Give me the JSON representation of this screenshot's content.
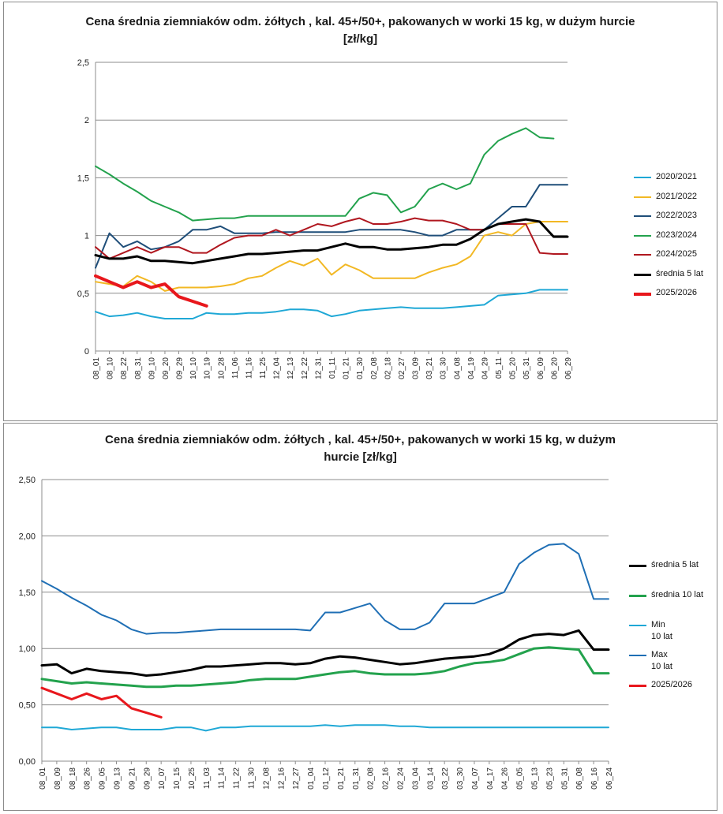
{
  "chart_data": [
    {
      "type": "line",
      "title": "Cena średnia ziemniaków odm. żółtych , kal. 45+/50+, pakowanych w worki 15 kg, w dużym hurcie [zł/kg]",
      "ylim": [
        0,
        2.5
      ],
      "yticks": [
        "0",
        "0,5",
        "1",
        "1,5",
        "2",
        "2,5"
      ],
      "ytick_values": [
        0,
        0.5,
        1,
        1.5,
        2,
        2.5
      ],
      "grid": true,
      "legend_position": "right",
      "categories": [
        "08_01",
        "08_10",
        "08_22",
        "08_31",
        "09_10",
        "09_20",
        "09_29",
        "10_10",
        "10_19",
        "10_28",
        "11_06",
        "11_16",
        "11_25",
        "12_04",
        "12_13",
        "12_22",
        "12_31",
        "01_11",
        "01_21",
        "01_30",
        "02_08",
        "02_18",
        "02_27",
        "03_09",
        "03_21",
        "03_30",
        "04_08",
        "04_19",
        "04_29",
        "05_11",
        "05_20",
        "05_31",
        "06_09",
        "06_20",
        "06_29"
      ],
      "series": [
        {
          "name": "2020/2021",
          "color": "#1fa8d6",
          "width": 2,
          "values": [
            0.34,
            0.3,
            0.31,
            0.33,
            0.3,
            0.28,
            0.28,
            0.28,
            0.33,
            0.32,
            0.32,
            0.33,
            0.33,
            0.34,
            0.36,
            0.36,
            0.35,
            0.3,
            0.32,
            0.35,
            0.36,
            0.37,
            0.38,
            0.37,
            0.37,
            0.37,
            0.38,
            0.39,
            0.4,
            0.48,
            0.49,
            0.5,
            0.53,
            0.53,
            0.53
          ]
        },
        {
          "name": "2021/2022",
          "color": "#f2b824",
          "width": 2,
          "values": [
            0.6,
            0.58,
            0.56,
            0.65,
            0.6,
            0.52,
            0.55,
            0.55,
            0.55,
            0.56,
            0.58,
            0.63,
            0.65,
            0.72,
            0.78,
            0.74,
            0.8,
            0.66,
            0.75,
            0.7,
            0.63,
            0.63,
            0.63,
            0.63,
            0.68,
            0.72,
            0.75,
            0.82,
            1.0,
            1.03,
            1.0,
            1.1,
            1.12,
            1.12,
            1.12
          ]
        },
        {
          "name": "2022/2023",
          "color": "#1f4e79",
          "width": 2,
          "values": [
            0.72,
            1.02,
            0.9,
            0.95,
            0.88,
            0.9,
            0.95,
            1.05,
            1.05,
            1.08,
            1.02,
            1.02,
            1.02,
            1.03,
            1.03,
            1.03,
            1.03,
            1.03,
            1.03,
            1.05,
            1.05,
            1.05,
            1.05,
            1.03,
            1.0,
            1.0,
            1.05,
            1.05,
            1.05,
            1.15,
            1.25,
            1.25,
            1.44,
            1.44,
            1.44
          ]
        },
        {
          "name": "2023/2024",
          "color": "#23a24d",
          "width": 2,
          "values": [
            1.6,
            1.53,
            1.45,
            1.38,
            1.3,
            1.25,
            1.2,
            1.13,
            1.14,
            1.15,
            1.15,
            1.17,
            1.17,
            1.17,
            1.17,
            1.17,
            1.17,
            1.17,
            1.17,
            1.32,
            1.37,
            1.35,
            1.2,
            1.25,
            1.4,
            1.45,
            1.4,
            1.45,
            1.7,
            1.82,
            1.88,
            1.93,
            1.85,
            1.84,
            null
          ]
        },
        {
          "name": "2024/2025",
          "color": "#b0171f",
          "width": 2,
          "values": [
            0.9,
            0.8,
            0.85,
            0.9,
            0.85,
            0.9,
            0.9,
            0.85,
            0.85,
            0.92,
            0.98,
            1.0,
            1.0,
            1.05,
            1.0,
            1.05,
            1.1,
            1.08,
            1.12,
            1.15,
            1.1,
            1.1,
            1.12,
            1.15,
            1.13,
            1.13,
            1.1,
            1.05,
            1.05,
            1.1,
            1.1,
            1.1,
            0.85,
            0.84,
            0.84
          ]
        },
        {
          "name": "średnia 5 lat",
          "color": "#000000",
          "width": 3,
          "values": [
            0.83,
            0.8,
            0.8,
            0.82,
            0.78,
            0.78,
            0.77,
            0.76,
            0.78,
            0.8,
            0.82,
            0.84,
            0.84,
            0.85,
            0.86,
            0.87,
            0.87,
            0.9,
            0.93,
            0.9,
            0.9,
            0.88,
            0.88,
            0.89,
            0.9,
            0.92,
            0.92,
            0.97,
            1.05,
            1.1,
            1.12,
            1.14,
            1.12,
            0.99,
            0.99
          ]
        },
        {
          "name": "2025/2026",
          "color": "#e8171c",
          "width": 4,
          "values": [
            0.65,
            0.6,
            0.55,
            0.6,
            0.55,
            0.58,
            0.47,
            0.43,
            0.39,
            null,
            null,
            null,
            null,
            null,
            null,
            null,
            null,
            null,
            null,
            null,
            null,
            null,
            null,
            null,
            null,
            null,
            null,
            null,
            null,
            null,
            null,
            null,
            null,
            null,
            null
          ]
        }
      ]
    },
    {
      "type": "line",
      "title": "Cena średnia ziemniaków odm. żółtych , kal. 45+/50+, pakowanych w worki 15 kg, w dużym hurcie [zł/kg]",
      "ylim": [
        0,
        2.5
      ],
      "yticks": [
        "0,00",
        "0,50",
        "1,00",
        "1,50",
        "2,00",
        "2,50"
      ],
      "ytick_values": [
        0,
        0.5,
        1,
        1.5,
        2,
        2.5
      ],
      "grid": true,
      "legend_position": "right",
      "categories": [
        "08_01",
        "08_09",
        "08_18",
        "08_26",
        "09_05",
        "09_13",
        "09_21",
        "09_29",
        "10_07",
        "10_15",
        "10_25",
        "11_03",
        "11_14",
        "11_22",
        "11_30",
        "12_08",
        "12_16",
        "12_27",
        "01_04",
        "01_12",
        "01_21",
        "01_31",
        "02_08",
        "02_16",
        "02_24",
        "03_04",
        "03_14",
        "03_22",
        "03_30",
        "04_07",
        "04_17",
        "04_26",
        "05_05",
        "05_13",
        "05_23",
        "05_31",
        "06_08",
        "06_16",
        "06_24"
      ],
      "series": [
        {
          "name": "średnia 5 lat",
          "color": "#000000",
          "width": 3,
          "values": [
            0.85,
            0.86,
            0.78,
            0.82,
            0.8,
            0.79,
            0.78,
            0.76,
            0.77,
            0.79,
            0.81,
            0.84,
            0.84,
            0.85,
            0.86,
            0.87,
            0.87,
            0.86,
            0.87,
            0.91,
            0.93,
            0.92,
            0.9,
            0.88,
            0.86,
            0.87,
            0.89,
            0.91,
            0.92,
            0.93,
            0.95,
            1.0,
            1.08,
            1.12,
            1.13,
            1.12,
            1.16,
            0.99,
            0.99
          ]
        },
        {
          "name": "średnia 10 lat",
          "color": "#23a24d",
          "width": 3,
          "values": [
            0.73,
            0.71,
            0.69,
            0.7,
            0.69,
            0.68,
            0.67,
            0.66,
            0.66,
            0.67,
            0.67,
            0.68,
            0.69,
            0.7,
            0.72,
            0.73,
            0.73,
            0.73,
            0.75,
            0.77,
            0.79,
            0.8,
            0.78,
            0.77,
            0.77,
            0.77,
            0.78,
            0.8,
            0.84,
            0.87,
            0.88,
            0.9,
            0.95,
            1.0,
            1.01,
            1.0,
            0.99,
            0.78,
            0.78
          ]
        },
        {
          "name": "Min\n10 lat",
          "color": "#1fa8d6",
          "width": 2,
          "values": [
            0.3,
            0.3,
            0.28,
            0.29,
            0.3,
            0.3,
            0.28,
            0.28,
            0.28,
            0.3,
            0.3,
            0.27,
            0.3,
            0.3,
            0.31,
            0.31,
            0.31,
            0.31,
            0.31,
            0.32,
            0.31,
            0.32,
            0.32,
            0.32,
            0.31,
            0.31,
            0.3,
            0.3,
            0.3,
            0.3,
            0.3,
            0.3,
            0.3,
            0.3,
            0.3,
            0.3,
            0.3,
            0.3,
            0.3
          ]
        },
        {
          "name": "Max\n10 lat",
          "color": "#1f6fb5",
          "width": 2,
          "values": [
            1.6,
            1.53,
            1.45,
            1.38,
            1.3,
            1.25,
            1.17,
            1.13,
            1.14,
            1.14,
            1.15,
            1.16,
            1.17,
            1.17,
            1.17,
            1.17,
            1.17,
            1.17,
            1.16,
            1.32,
            1.32,
            1.36,
            1.4,
            1.25,
            1.17,
            1.17,
            1.23,
            1.4,
            1.4,
            1.4,
            1.45,
            1.5,
            1.75,
            1.85,
            1.92,
            1.93,
            1.84,
            1.44,
            1.44
          ]
        },
        {
          "name": "2025/2026",
          "color": "#e8171c",
          "width": 3,
          "values": [
            0.65,
            0.6,
            0.55,
            0.6,
            0.55,
            0.58,
            0.47,
            0.43,
            0.39,
            null,
            null,
            null,
            null,
            null,
            null,
            null,
            null,
            null,
            null,
            null,
            null,
            null,
            null,
            null,
            null,
            null,
            null,
            null,
            null,
            null,
            null,
            null,
            null,
            null,
            null,
            null,
            null,
            null,
            null
          ]
        }
      ]
    }
  ]
}
